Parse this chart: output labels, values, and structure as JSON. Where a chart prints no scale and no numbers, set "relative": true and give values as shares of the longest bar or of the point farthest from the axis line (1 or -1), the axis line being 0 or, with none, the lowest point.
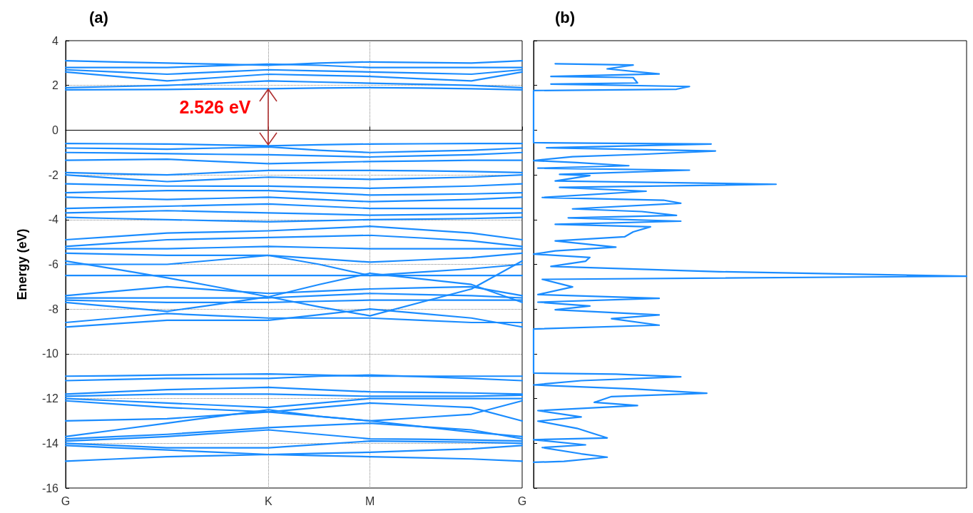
{
  "chart_data": [
    {
      "type": "line",
      "title": "(a)",
      "ylabel": "Energy (eV)",
      "color": "#1a8cff",
      "marker": "none",
      "grid": true,
      "categories": [
        "G",
        null,
        null,
        null,
        "K",
        null,
        "M",
        null,
        null,
        "G"
      ],
      "ylim": [
        -16,
        4
      ],
      "yticks": [
        -16,
        -14,
        -12,
        -10,
        -8,
        -6,
        -4,
        -2,
        0,
        2,
        4
      ],
      "annotations": [
        {
          "text": "2.526 eV",
          "x": "K",
          "y": 1.85
        }
      ],
      "series": [
        {
          "values": [
            1.8,
            1.81,
            1.82,
            1.84,
            1.85,
            1.88,
            1.9,
            1.88,
            1.85,
            1.8
          ]
        },
        {
          "values": [
            1.9,
            1.95,
            2.0,
            2.1,
            2.2,
            2.15,
            2.1,
            2.05,
            2.0,
            1.9
          ]
        },
        {
          "values": [
            2.6,
            2.4,
            2.2,
            2.35,
            2.5,
            2.45,
            2.4,
            2.3,
            2.2,
            2.6
          ]
        },
        {
          "values": [
            2.7,
            2.6,
            2.5,
            2.6,
            2.7,
            2.65,
            2.6,
            2.55,
            2.5,
            2.7
          ]
        },
        {
          "values": [
            2.8,
            2.8,
            2.8,
            2.88,
            2.95,
            2.9,
            2.8,
            2.8,
            2.8,
            2.8
          ]
        },
        {
          "values": [
            3.1,
            3.05,
            3.0,
            2.95,
            2.9,
            3.0,
            3.05,
            3.02,
            3.0,
            3.1
          ]
        },
        {
          "values": [
            -0.6,
            -0.61,
            -0.62,
            -0.66,
            -0.7,
            -0.65,
            -0.62,
            -0.61,
            -0.6,
            -0.6
          ]
        },
        {
          "values": [
            -0.8,
            -0.82,
            -0.85,
            -0.8,
            -0.75,
            -0.9,
            -1.0,
            -0.95,
            -0.9,
            -0.8
          ]
        },
        {
          "values": [
            -1.0,
            -1.02,
            -1.05,
            -1.08,
            -1.1,
            -1.15,
            -1.2,
            -1.15,
            -1.1,
            -1.0
          ]
        },
        {
          "values": [
            -1.35,
            -1.32,
            -1.3,
            -1.4,
            -1.5,
            -1.45,
            -1.4,
            -1.38,
            -1.35,
            -1.35
          ]
        },
        {
          "values": [
            -1.9,
            -1.95,
            -2.0,
            -1.9,
            -1.8,
            -1.8,
            -1.8,
            -1.82,
            -1.85,
            -1.9
          ]
        },
        {
          "values": [
            -2.0,
            -2.15,
            -2.3,
            -2.2,
            -2.1,
            -2.15,
            -2.2,
            -2.15,
            -2.1,
            -2.0
          ]
        },
        {
          "values": [
            -2.4,
            -2.45,
            -2.5,
            -2.5,
            -2.5,
            -2.55,
            -2.6,
            -2.55,
            -2.5,
            -2.4
          ]
        },
        {
          "values": [
            -2.8,
            -2.75,
            -2.7,
            -2.7,
            -2.7,
            -2.8,
            -2.9,
            -2.88,
            -2.85,
            -2.8
          ]
        },
        {
          "values": [
            -3.0,
            -3.05,
            -3.1,
            -3.05,
            -3.0,
            -3.1,
            -3.2,
            -3.15,
            -3.1,
            -3.0
          ]
        },
        {
          "values": [
            -3.5,
            -3.45,
            -3.4,
            -3.35,
            -3.3,
            -3.4,
            -3.5,
            -3.5,
            -3.5,
            -3.5
          ]
        },
        {
          "values": [
            -3.7,
            -3.65,
            -3.6,
            -3.65,
            -3.7,
            -3.75,
            -3.8,
            -3.78,
            -3.75,
            -3.7
          ]
        },
        {
          "values": [
            -3.9,
            -3.95,
            -4.0,
            -4.05,
            -4.1,
            -4.05,
            -4.0,
            -3.98,
            -3.95,
            -3.9
          ]
        },
        {
          "values": [
            -4.9,
            -4.75,
            -4.6,
            -4.55,
            -4.5,
            -4.4,
            -4.3,
            -4.45,
            -4.6,
            -4.9
          ]
        },
        {
          "values": [
            -5.2,
            -5.05,
            -4.9,
            -4.85,
            -4.8,
            -4.75,
            -4.7,
            -4.82,
            -4.95,
            -5.2
          ]
        },
        {
          "values": [
            -5.3,
            -5.3,
            -5.3,
            -5.25,
            -5.2,
            -5.25,
            -5.3,
            -5.3,
            -5.3,
            -5.3
          ]
        },
        {
          "values": [
            -5.5,
            -5.55,
            -5.6,
            -5.6,
            -5.6,
            -5.75,
            -5.9,
            -5.8,
            -5.7,
            -5.5
          ]
        },
        {
          "values": [
            -5.85,
            -6.22,
            -6.6,
            -7.02,
            -7.45,
            -7.9,
            -8.3,
            -7.7,
            -7.1,
            -5.85
          ]
        },
        {
          "values": [
            -6.0,
            -6.0,
            -6.0,
            -5.8,
            -5.6,
            -6.0,
            -6.5,
            -6.35,
            -6.2,
            -6.0
          ]
        },
        {
          "values": [
            -6.5,
            -6.5,
            -6.5,
            -6.5,
            -6.5,
            -6.5,
            -6.5,
            -6.5,
            -6.5,
            -6.5
          ]
        },
        {
          "values": [
            -7.4,
            -7.2,
            -7.0,
            -7.15,
            -7.3,
            -7.2,
            -7.1,
            -7.05,
            -7.0,
            -7.4
          ]
        },
        {
          "values": [
            -7.5,
            -7.5,
            -7.5,
            -7.5,
            -7.5,
            -7.4,
            -7.3,
            -7.35,
            -7.4,
            -7.5
          ]
        },
        {
          "values": [
            -7.6,
            -7.65,
            -7.7,
            -7.7,
            -7.7,
            -7.65,
            -7.6,
            -7.6,
            -7.6,
            -7.6
          ]
        },
        {
          "values": [
            -7.7,
            -7.9,
            -8.1,
            -7.78,
            -7.45,
            -6.9,
            -6.4,
            -6.65,
            -6.9,
            -7.7
          ]
        },
        {
          "values": [
            -8.6,
            -8.4,
            -8.2,
            -8.3,
            -8.4,
            -8.4,
            -8.4,
            -8.5,
            -8.6,
            -8.6
          ]
        },
        {
          "values": [
            -8.8,
            -8.65,
            -8.5,
            -8.5,
            -8.5,
            -8.25,
            -8.0,
            -8.2,
            -8.4,
            -8.8
          ]
        },
        {
          "values": [
            -11.0,
            -10.98,
            -10.95,
            -10.92,
            -10.9,
            -10.95,
            -11.0,
            -11.0,
            -11.0,
            -11.0
          ]
        },
        {
          "values": [
            -11.2,
            -11.15,
            -11.1,
            -11.1,
            -11.1,
            -11.0,
            -10.95,
            -11.02,
            -11.1,
            -11.2
          ]
        },
        {
          "values": [
            -11.8,
            -11.7,
            -11.6,
            -11.55,
            -11.5,
            -11.6,
            -11.7,
            -11.72,
            -11.75,
            -11.8
          ]
        },
        {
          "values": [
            -11.9,
            -11.85,
            -11.8,
            -11.8,
            -11.8,
            -11.85,
            -11.9,
            -11.9,
            -11.9,
            -11.85
          ]
        },
        {
          "values": [
            -12.0,
            -12.1,
            -12.2,
            -12.3,
            -12.4,
            -12.2,
            -12.0,
            -12.0,
            -12.0,
            -12.0
          ]
        },
        {
          "values": [
            -12.1,
            -12.25,
            -12.4,
            -12.5,
            -12.6,
            -12.8,
            -13.0,
            -12.85,
            -12.7,
            -12.1
          ]
        },
        {
          "values": [
            -13.0,
            -12.95,
            -12.9,
            -12.75,
            -12.6,
            -12.4,
            -12.2,
            -12.3,
            -12.4,
            -13.0
          ]
        },
        {
          "values": [
            -13.7,
            -13.4,
            -13.1,
            -12.8,
            -12.5,
            -12.8,
            -13.0,
            -13.25,
            -13.5,
            -13.7
          ]
        },
        {
          "values": [
            -13.8,
            -13.7,
            -13.6,
            -13.45,
            -13.3,
            -13.2,
            -13.1,
            -13.25,
            -13.4,
            -13.8
          ]
        },
        {
          "values": [
            -13.9,
            -13.8,
            -13.7,
            -13.55,
            -13.4,
            -13.6,
            -13.8,
            -13.82,
            -13.85,
            -13.9
          ]
        },
        {
          "values": [
            -14.0,
            -14.1,
            -14.2,
            -14.2,
            -14.2,
            -14.05,
            -13.9,
            -13.92,
            -13.95,
            -14.0
          ]
        },
        {
          "values": [
            -14.1,
            -14.2,
            -14.3,
            -14.4,
            -14.5,
            -14.45,
            -14.4,
            -14.32,
            -14.25,
            -14.1
          ]
        },
        {
          "values": [
            -14.8,
            -14.7,
            -14.6,
            -14.55,
            -14.5,
            -14.55,
            -14.6,
            -14.65,
            -14.7,
            -14.8
          ]
        }
      ]
    },
    {
      "type": "line",
      "title": "(b)",
      "color": "#1a8cff",
      "marker": "none",
      "relative": true,
      "orientation": "horizontal",
      "tick_labels": false,
      "ylim": [
        -16,
        4
      ],
      "yticks": [
        -16,
        -14,
        -12,
        -10,
        -8,
        -6,
        -4,
        -2,
        0,
        2,
        4
      ],
      "series": [
        {
          "x": [
            2.97,
            2.91,
            2.74,
            2.51,
            2.4,
            2.35,
            2.11,
            2.06,
            1.95,
            1.83,
            1.77,
            -0.56,
            -0.62,
            -0.79,
            -0.93,
            -1.08,
            -1.19,
            -1.36,
            -1.45,
            -1.59,
            -1.7,
            -1.79,
            -1.98,
            -2.03,
            -2.27,
            -2.42,
            -2.56,
            -2.73,
            -3.01,
            -3.13,
            -3.27,
            -3.52,
            -3.64,
            -3.81,
            -3.92,
            -4.07,
            -4.21,
            -4.32,
            -4.55,
            -4.77,
            -4.95,
            -5.23,
            -5.4,
            -5.54,
            -5.69,
            -5.86,
            -6.09,
            -6.33,
            -6.53,
            -6.67,
            -7.01,
            -7.35,
            -7.52,
            -7.69,
            -7.86,
            -8.03,
            -8.26,
            -8.43,
            -8.72,
            -8.89,
            -10.86,
            -10.91,
            -11.03,
            -11.2,
            -11.39,
            -11.57,
            -11.76,
            -11.91,
            -12.17,
            -12.31,
            -12.54,
            -12.82,
            -13.01,
            -13.33,
            -13.76,
            -13.84,
            -14.07,
            -14.19,
            -14.47,
            -14.62,
            -14.81,
            -14.85
          ],
          "values": [
            0.05,
            0.23,
            0.17,
            0.29,
            0.04,
            0.23,
            0.24,
            0.04,
            0.36,
            0.33,
            0,
            0,
            0.41,
            0.03,
            0.42,
            0.25,
            0.09,
            0,
            0.1,
            0.22,
            0.01,
            0.36,
            0.06,
            0.13,
            0.05,
            0.56,
            0.06,
            0.26,
            0.02,
            0.3,
            0.34,
            0.09,
            0.25,
            0.33,
            0.08,
            0.34,
            0.05,
            0.27,
            0.23,
            0.21,
            0.05,
            0.19,
            0.05,
            0,
            0.13,
            0.12,
            0.04,
            0.43,
            1,
            0.02,
            0.09,
            0.01,
            0.29,
            0.01,
            0.13,
            0.05,
            0.29,
            0.18,
            0.29,
            0,
            0,
            0.19,
            0.34,
            0.11,
            0,
            0.23,
            0.4,
            0.18,
            0.14,
            0.24,
            0.01,
            0.11,
            0.01,
            0.1,
            0.17,
            0,
            0.12,
            0.02,
            0.11,
            0.17,
            0.07,
            0
          ]
        }
      ]
    }
  ]
}
